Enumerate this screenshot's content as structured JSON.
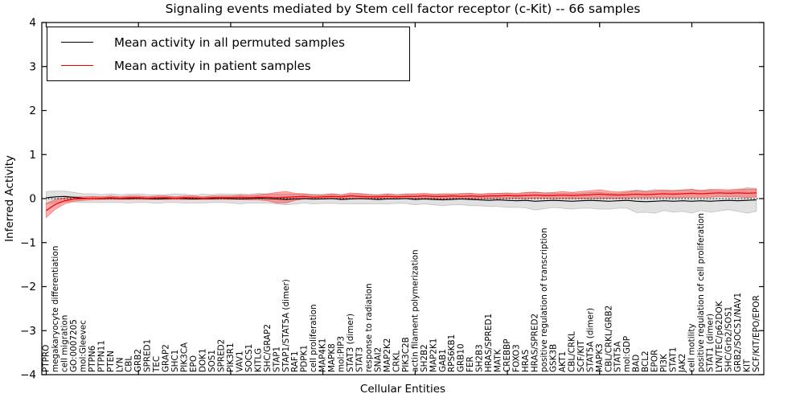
{
  "chart_data": {
    "type": "line",
    "title": "Signaling events mediated by Stem cell factor receptor (c-Kit) -- 66 samples",
    "xlabel": "Cellular Entities",
    "ylabel": "Inferred Activity",
    "ylim": [
      -4,
      4
    ],
    "yticks": [
      -4,
      -3,
      -2,
      -1,
      0,
      1,
      2,
      3,
      4
    ],
    "ytick_labels": [
      "−4",
      "−3",
      "−2",
      "−1",
      "0",
      "1",
      "2",
      "3",
      "4"
    ],
    "grid": false,
    "zero_line": "dotted",
    "legend_position": "upper left",
    "categories": [
      "PTPRO",
      "megakaryocyte differentiation",
      "cell migration",
      "GO:0007205",
      "mol:Gleevec",
      "PTPN6",
      "PTPN11",
      "PTEN",
      "LYN",
      "CBL",
      "GRB2",
      "SPRED1",
      "TEC",
      "GRAP2",
      "SHC1",
      "PIK3CA",
      "EPO",
      "DOK1",
      "SOS1",
      "SPRED2",
      "PIK3R1",
      "VAV1",
      "SOCS1",
      "KITLG",
      "SHC/GRAP2",
      "STAP1",
      "STAP1/STAT5A (dimer)",
      "RAF1",
      "PDPK1",
      "cell proliferation",
      "MAP4K1",
      "MAPK8",
      "mol:PIP3",
      "STAT3 (dimer)",
      "STAT3",
      "response to radiation",
      "SNAI2",
      "MAP2K2",
      "CRKL",
      "PIK3C2B",
      "actin filament polymerization",
      "SH2B2",
      "MAP2K1",
      "GAB1",
      "RPS6KB1",
      "GRB10",
      "FER",
      "SH2B3",
      "HRAS/SPRED1",
      "MATK",
      "CREBBP",
      "FOXO3",
      "HRAS",
      "HRAS/SPRED2",
      "positive regulation of transcription",
      "GSK3B",
      "AKT1",
      "CBL/CRKL",
      "SCF/KIT",
      "STAT5A (dimer)",
      "MAPK3",
      "CBL/CRKL/GRB2",
      "STAT5A",
      "mol:GDP",
      "BAD",
      "BCL2",
      "EPOR",
      "PI3K",
      "STAT1",
      "JAK2",
      "cell motility",
      "positive regulation of cell proliferation",
      "STAT1 (dimer)",
      "LYN/TEC/p62DOK",
      "SHC/Grb2/SOS1",
      "GRB2/SOCS1/NAV1",
      "KIT",
      "SCF/KIT/EPO/EPOR"
    ],
    "series": [
      {
        "name": "Mean activity in all permuted samples",
        "color": "#000000",
        "band_color": "#777777",
        "values": [
          0.02,
          0.04,
          0.05,
          0.03,
          0.01,
          0.01,
          0.0,
          0.01,
          0.0,
          0.0,
          0.01,
          0.0,
          -0.01,
          0.0,
          0.01,
          0.0,
          -0.01,
          0.0,
          0.0,
          0.01,
          0.0,
          -0.01,
          0.0,
          0.01,
          0.0,
          -0.01,
          -0.02,
          -0.01,
          0.0,
          -0.01,
          -0.01,
          0.0,
          -0.02,
          -0.01,
          0.0,
          -0.01,
          -0.02,
          -0.01,
          -0.01,
          0.0,
          -0.02,
          -0.01,
          -0.02,
          -0.03,
          -0.02,
          -0.01,
          -0.02,
          -0.03,
          -0.04,
          -0.03,
          -0.04,
          -0.05,
          -0.04,
          -0.06,
          -0.05,
          -0.04,
          -0.05,
          -0.06,
          -0.05,
          -0.04,
          -0.05,
          -0.06,
          -0.05,
          -0.04,
          -0.06,
          -0.07,
          -0.06,
          -0.05,
          -0.06,
          -0.05,
          -0.06,
          -0.05,
          -0.06,
          -0.05,
          -0.04,
          -0.05,
          -0.04,
          -0.03
        ],
        "band": [
          0.14,
          0.13,
          0.12,
          0.11,
          0.1,
          0.1,
          0.09,
          0.1,
          0.09,
          0.1,
          0.1,
          0.09,
          0.1,
          0.09,
          0.1,
          0.1,
          0.09,
          0.1,
          0.09,
          0.1,
          0.1,
          0.11,
          0.1,
          0.11,
          0.1,
          0.11,
          0.12,
          0.11,
          0.1,
          0.11,
          0.1,
          0.11,
          0.1,
          0.11,
          0.12,
          0.11,
          0.1,
          0.11,
          0.1,
          0.11,
          0.12,
          0.11,
          0.12,
          0.13,
          0.12,
          0.13,
          0.14,
          0.13,
          0.14,
          0.15,
          0.16,
          0.15,
          0.17,
          0.2,
          0.18,
          0.16,
          0.17,
          0.18,
          0.17,
          0.18,
          0.19,
          0.18,
          0.17,
          0.18,
          0.26,
          0.24,
          0.27,
          0.22,
          0.25,
          0.24,
          0.27,
          0.22,
          0.25,
          0.23,
          0.21,
          0.24,
          0.29,
          0.26
        ]
      },
      {
        "name": "Mean activity in patient samples",
        "color": "#ff0000",
        "band_color": "#ff0000",
        "values": [
          -0.27,
          -0.13,
          -0.05,
          -0.01,
          0.0,
          0.01,
          0.01,
          0.02,
          0.01,
          0.02,
          0.02,
          0.01,
          0.02,
          0.02,
          0.01,
          0.02,
          0.02,
          0.01,
          0.02,
          0.02,
          0.02,
          0.03,
          0.02,
          0.03,
          0.03,
          0.02,
          0.03,
          0.04,
          0.05,
          0.03,
          0.04,
          0.05,
          0.04,
          0.06,
          0.05,
          0.04,
          0.04,
          0.05,
          0.04,
          0.05,
          0.05,
          0.06,
          0.05,
          0.05,
          0.06,
          0.05,
          0.06,
          0.05,
          0.06,
          0.06,
          0.07,
          0.06,
          0.07,
          0.08,
          0.07,
          0.07,
          0.08,
          0.07,
          0.08,
          0.09,
          0.1,
          0.09,
          0.08,
          0.09,
          0.1,
          0.09,
          0.1,
          0.11,
          0.1,
          0.11,
          0.12,
          0.11,
          0.12,
          0.13,
          0.12,
          0.13,
          0.12,
          0.13
        ],
        "band": [
          0.16,
          0.11,
          0.07,
          0.05,
          0.04,
          0.04,
          0.03,
          0.04,
          0.03,
          0.04,
          0.04,
          0.03,
          0.04,
          0.04,
          0.03,
          0.04,
          0.04,
          0.03,
          0.04,
          0.04,
          0.04,
          0.05,
          0.05,
          0.06,
          0.08,
          0.12,
          0.13,
          0.08,
          0.06,
          0.05,
          0.05,
          0.06,
          0.05,
          0.07,
          0.06,
          0.05,
          0.05,
          0.06,
          0.05,
          0.05,
          0.06,
          0.06,
          0.05,
          0.06,
          0.05,
          0.06,
          0.06,
          0.05,
          0.06,
          0.06,
          0.06,
          0.06,
          0.07,
          0.07,
          0.06,
          0.07,
          0.08,
          0.07,
          0.08,
          0.09,
          0.1,
          0.08,
          0.07,
          0.08,
          0.08,
          0.07,
          0.08,
          0.09,
          0.08,
          0.09,
          0.09,
          0.08,
          0.09,
          0.08,
          0.08,
          0.09,
          0.1,
          0.09
        ]
      }
    ]
  }
}
